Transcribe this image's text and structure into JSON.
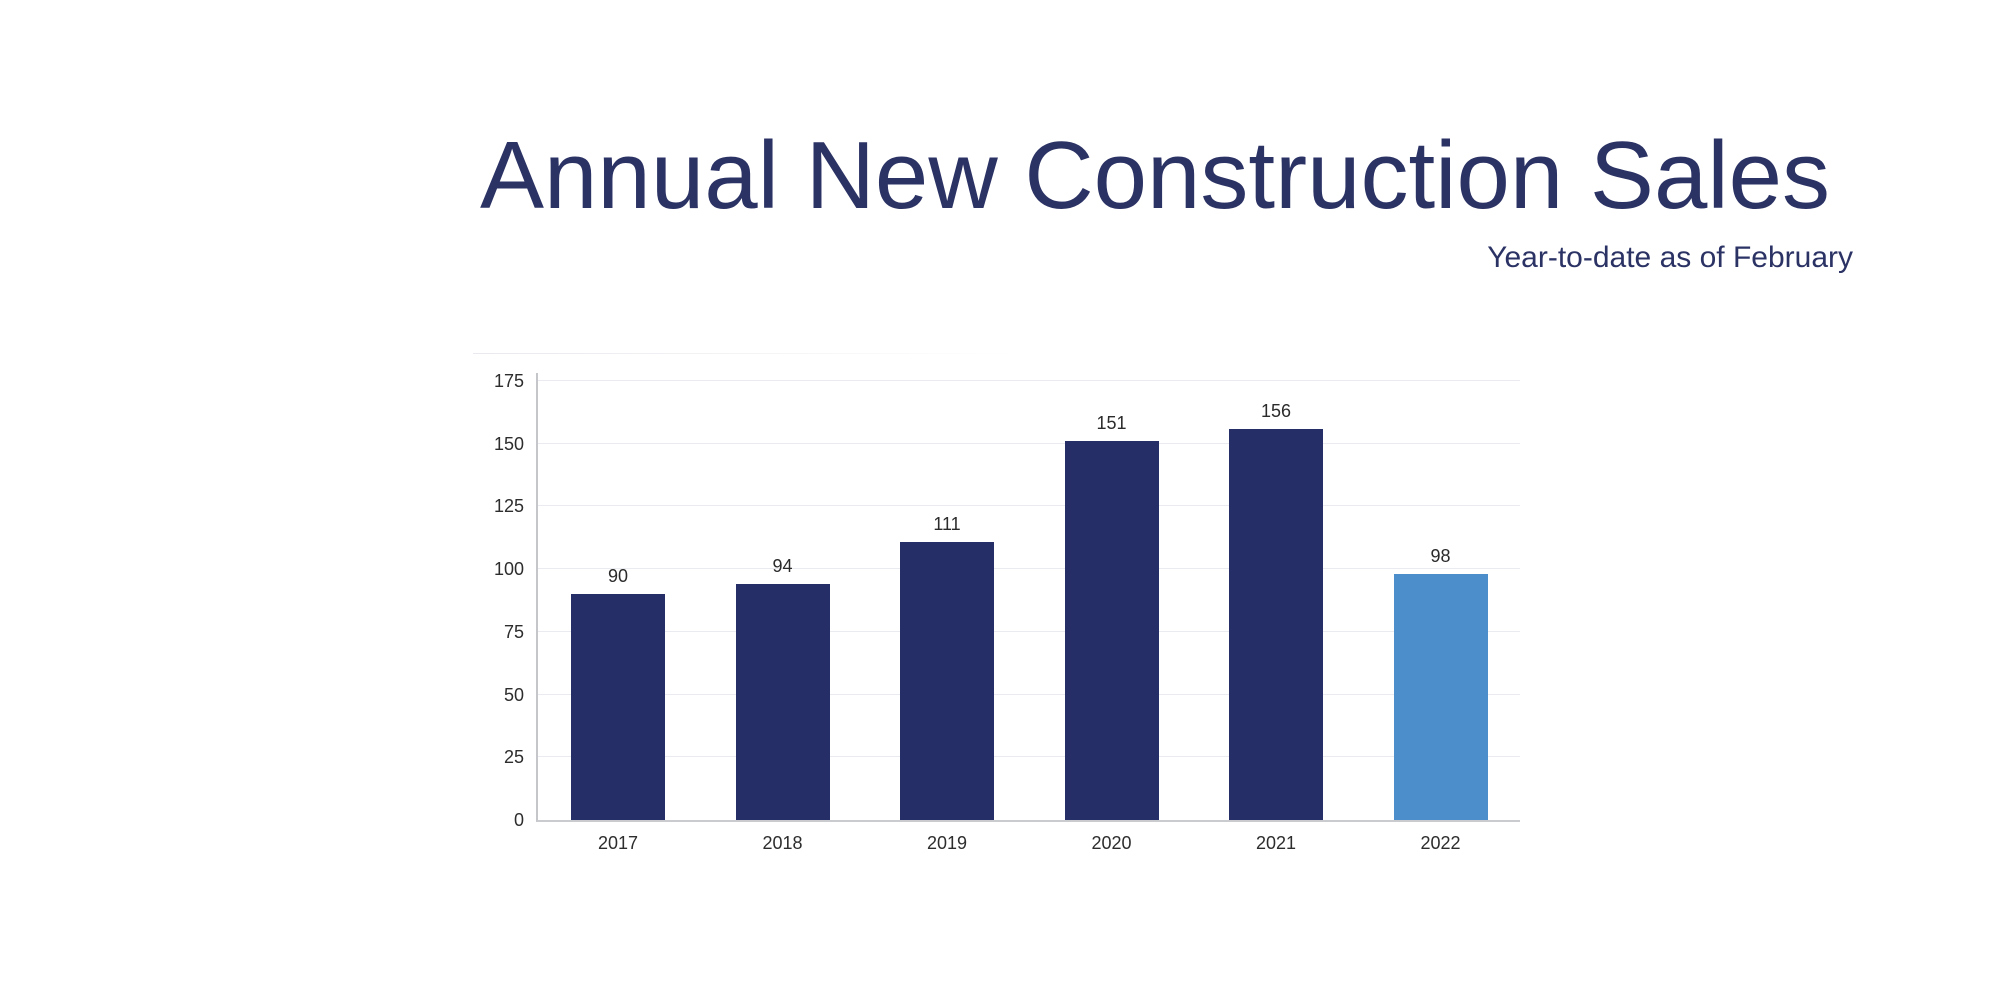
{
  "header": {
    "title": "Annual New Construction Sales",
    "subtitle": "Year-to-date as of February",
    "text_color": "#2b3264"
  },
  "chart_data": {
    "type": "bar",
    "title": "Annual New Construction Sales",
    "subtitle": "Year-to-date as of February",
    "categories": [
      "2017",
      "2018",
      "2019",
      "2020",
      "2021",
      "2022"
    ],
    "values": [
      90,
      94,
      111,
      151,
      156,
      98
    ],
    "value_labels": [
      "90",
      "94",
      "111",
      "151",
      "156",
      "98"
    ],
    "bar_colors": [
      "#252e66",
      "#252e66",
      "#252e66",
      "#252e66",
      "#252e66",
      "#4b8ecb"
    ],
    "highlighted_category": "2022",
    "highlight_color": "#4b8ecb",
    "default_bar_color": "#252e66",
    "xlabel": "",
    "ylabel": "",
    "ylim": [
      0,
      175
    ],
    "yticks": [
      0,
      25,
      50,
      75,
      100,
      125,
      150,
      175
    ],
    "grid": true,
    "gridline_color": "#e9ebf0",
    "axis_line_color": "#c4c6ca",
    "tick_label_color": "#2d2d2d",
    "legend": "none"
  }
}
